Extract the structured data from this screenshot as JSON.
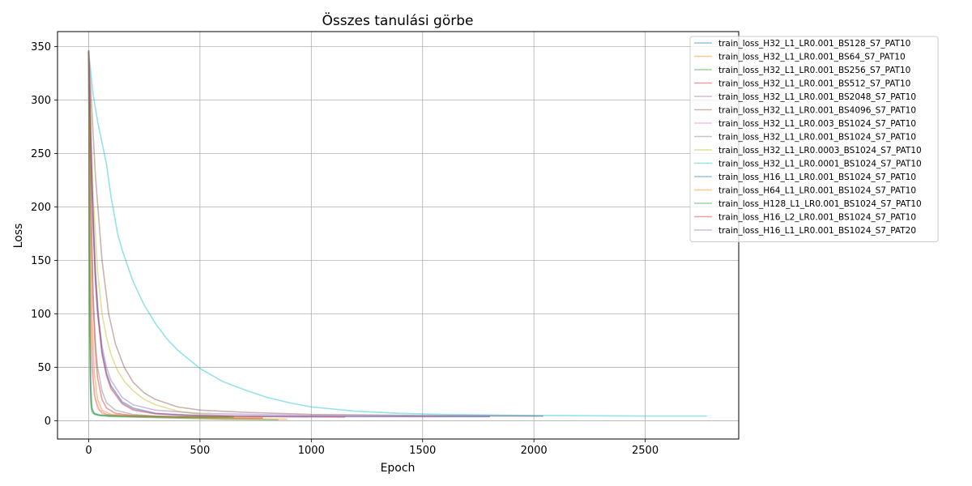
{
  "chart_data": {
    "type": "line",
    "title": "Összes tanulási görbe",
    "xlabel": "Epoch",
    "ylabel": "Loss",
    "xlim": [
      -140,
      2920
    ],
    "ylim": [
      -17,
      364
    ],
    "xticks": [
      0,
      500,
      1000,
      1500,
      2000,
      2500
    ],
    "yticks": [
      0,
      50,
      100,
      150,
      200,
      250,
      300,
      350
    ],
    "grid": true,
    "legend_position": "upper-right-outside",
    "series": [
      {
        "name": "train_loss_H32_L1_LR0.001_BS128_S7_PAT10",
        "color": "#1f77b4",
        "x": [
          0,
          3,
          6,
          10,
          15,
          25,
          40,
          60,
          100,
          200,
          350,
          450
        ],
        "y": [
          345,
          200,
          80,
          30,
          12,
          7,
          5.5,
          5,
          4.5,
          4,
          3.5,
          3.5
        ]
      },
      {
        "name": "train_loss_H32_L1_LR0.001_BS64_S7_PAT10",
        "color": "#ff7f0e",
        "x": [
          0,
          3,
          6,
          10,
          15,
          25,
          40,
          60,
          100,
          300,
          600,
          890
        ],
        "y": [
          340,
          230,
          150,
          90,
          50,
          25,
          12,
          7,
          5,
          3.5,
          2,
          1.5
        ]
      },
      {
        "name": "train_loss_H32_L1_LR0.001_BS256_S7_PAT10",
        "color": "#2ca02c",
        "x": [
          0,
          2,
          4,
          7,
          10,
          15,
          25,
          50,
          100,
          300,
          600,
          850
        ],
        "y": [
          343,
          200,
          90,
          35,
          15,
          8,
          6,
          5,
          4,
          3,
          1.5,
          1
        ]
      },
      {
        "name": "train_loss_H32_L1_LR0.001_BS512_S7_PAT10",
        "color": "#d62728",
        "x": [
          0,
          5,
          10,
          20,
          30,
          40,
          60,
          80,
          120,
          200,
          400,
          700,
          780
        ],
        "y": [
          345,
          280,
          200,
          110,
          65,
          40,
          20,
          12,
          7,
          5,
          3.5,
          2.5,
          2.5
        ]
      },
      {
        "name": "train_loss_H32_L1_LR0.001_BS2048_S7_PAT10",
        "color": "#9467bd",
        "x": [
          0,
          15,
          30,
          45,
          60,
          80,
          100,
          150,
          200,
          300,
          500,
          1000,
          1500,
          2040
        ],
        "y": [
          346,
          220,
          140,
          95,
          70,
          50,
          38,
          22,
          15,
          10,
          7,
          5,
          4.5,
          4.5
        ]
      },
      {
        "name": "train_loss_H32_L1_LR0.001_BS4096_S7_PAT10",
        "color": "#8c564b",
        "x": [
          0,
          30,
          60,
          90,
          120,
          160,
          200,
          250,
          300,
          400,
          500,
          700,
          1000,
          1500,
          2040
        ],
        "y": [
          346,
          230,
          150,
          100,
          72,
          50,
          36,
          26,
          20,
          13,
          10,
          8,
          6,
          5,
          4.5
        ]
      },
      {
        "name": "train_loss_H32_L1_LR0.003_BS1024_S7_PAT10",
        "color": "#e377c2",
        "x": [
          0,
          3,
          6,
          10,
          20,
          30,
          50,
          80,
          150,
          300,
          400
        ],
        "y": [
          345,
          250,
          170,
          100,
          40,
          20,
          10,
          6,
          4.5,
          3.5,
          3
        ]
      },
      {
        "name": "train_loss_H32_L1_LR0.001_BS1024_S7_PAT10",
        "color": "#7f7f7f",
        "x": [
          0,
          5,
          10,
          20,
          30,
          40,
          60,
          80,
          120,
          200,
          300,
          400,
          630
        ],
        "y": [
          345,
          280,
          200,
          120,
          75,
          50,
          28,
          17,
          10,
          6,
          4.5,
          4,
          3.5
        ]
      },
      {
        "name": "train_loss_H32_L1_LR0.0003_BS1024_S7_PAT10",
        "color": "#bcbd22",
        "x": [
          0,
          20,
          40,
          60,
          80,
          100,
          130,
          160,
          200,
          250,
          300,
          400,
          500,
          650
        ],
        "y": [
          346,
          210,
          140,
          100,
          78,
          62,
          47,
          37,
          28,
          20,
          15,
          9,
          6,
          4.5
        ]
      },
      {
        "name": "train_loss_H32_L1_LR0.0001_BS1024_S7_PAT10",
        "color": "#17becf",
        "x": [
          0,
          20,
          40,
          60,
          80,
          100,
          130,
          150,
          200,
          250,
          300,
          350,
          400,
          500,
          600,
          700,
          800,
          900,
          1000,
          1200,
          1400,
          1600,
          2000,
          2500,
          2775
        ],
        "y": [
          345,
          305,
          280,
          260,
          240,
          210,
          175,
          160,
          130,
          108,
          91,
          77,
          66,
          49,
          37,
          29,
          22,
          17,
          13,
          9,
          7,
          6,
          5,
          4.5,
          4.5
        ]
      },
      {
        "name": "train_loss_H16_L1_LR0.001_BS1024_S7_PAT10",
        "color": "#1f77b4",
        "x": [
          0,
          10,
          20,
          30,
          40,
          60,
          80,
          100,
          150,
          200,
          300,
          400,
          600,
          900,
          1200,
          1800
        ],
        "y": [
          346,
          260,
          190,
          140,
          105,
          65,
          45,
          33,
          18,
          12,
          7,
          5.5,
          4.5,
          4,
          4,
          4
        ]
      },
      {
        "name": "train_loss_H64_L1_LR0.001_BS1024_S7_PAT10",
        "color": "#ff7f0e",
        "x": [
          0,
          4,
          8,
          15,
          25,
          40,
          60,
          100,
          200,
          400,
          600,
          780
        ],
        "y": [
          345,
          260,
          180,
          100,
          45,
          20,
          10,
          6,
          4.5,
          3.5,
          3,
          3
        ]
      },
      {
        "name": "train_loss_H128_L1_LR0.001_BS1024_S7_PAT10",
        "color": "#2ca02c",
        "x": [
          0,
          2,
          4,
          7,
          10,
          15,
          25,
          50,
          100,
          300,
          500,
          650
        ],
        "y": [
          345,
          220,
          110,
          45,
          20,
          10,
          7,
          5.5,
          5,
          4,
          3.5,
          3.5
        ]
      },
      {
        "name": "train_loss_H16_L2_LR0.001_BS1024_S7_PAT10",
        "color": "#d62728",
        "x": [
          0,
          10,
          20,
          30,
          40,
          60,
          80,
          100,
          150,
          200,
          300,
          500,
          800,
          1150
        ],
        "y": [
          345,
          250,
          180,
          130,
          100,
          62,
          42,
          30,
          16,
          10,
          6.5,
          4.5,
          4,
          3.5
        ]
      },
      {
        "name": "train_loss_H16_L1_LR0.001_BS1024_S7_PAT20",
        "color": "#9467bd",
        "x": [
          0,
          10,
          20,
          30,
          40,
          60,
          80,
          100,
          150,
          200,
          300,
          500,
          800,
          1200,
          1800
        ],
        "y": [
          346,
          255,
          185,
          135,
          102,
          64,
          44,
          32,
          17,
          11,
          7,
          5,
          4.5,
          4,
          4
        ]
      }
    ]
  }
}
